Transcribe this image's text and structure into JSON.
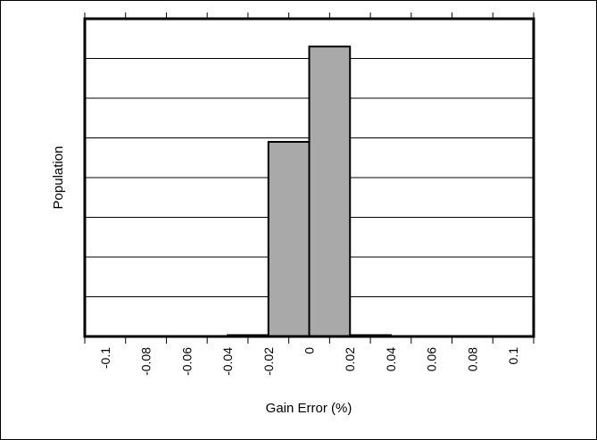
{
  "chart_data": {
    "type": "bar",
    "title": "",
    "xlabel": "Gain Error (%)",
    "ylabel": "Population",
    "x_ticks": [
      "-0.1",
      "-0.08",
      "-0.06",
      "-0.04",
      "-0.02",
      "0",
      "0.02",
      "0.04",
      "0.06",
      "0.08",
      "0.1"
    ],
    "bins": [
      {
        "from": -0.04,
        "to": -0.02,
        "value": 0.3
      },
      {
        "from": -0.02,
        "to": 0.0,
        "value": 49
      },
      {
        "from": 0.0,
        "to": 0.02,
        "value": 73
      },
      {
        "from": 0.02,
        "to": 0.04,
        "value": 0.3
      }
    ],
    "xlim": [
      -0.11,
      0.11
    ],
    "ylim": [
      0,
      80
    ],
    "y_gridlines": 8,
    "y_tick_labels": false,
    "grid": true,
    "legend": "none",
    "bar_color": "#a9a9a9"
  }
}
